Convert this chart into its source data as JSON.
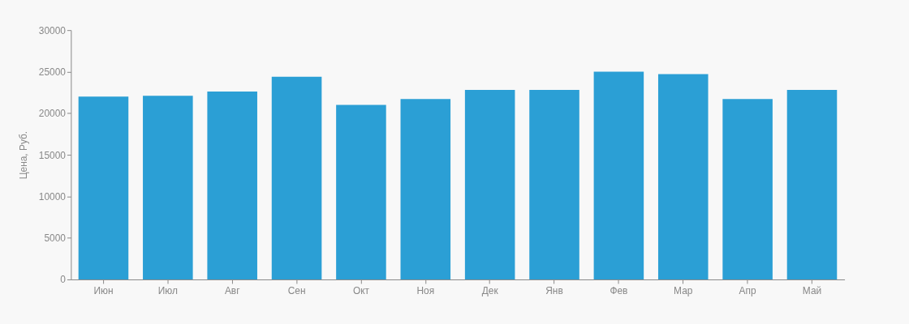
{
  "chart_data": {
    "type": "bar",
    "ylabel": "Цена, Руб.",
    "categories": [
      "Июн",
      "Июл",
      "Авг",
      "Сен",
      "Окт",
      "Ноя",
      "Дек",
      "Янв",
      "Фев",
      "Мар",
      "Апр",
      "Май"
    ],
    "values": [
      22000,
      22100,
      22600,
      24400,
      21000,
      21700,
      22800,
      22800,
      25000,
      24700,
      21700,
      22800
    ],
    "color": "#2b9fd5",
    "ylim": [
      0,
      30000
    ],
    "yticks": [
      0,
      5000,
      10000,
      15000,
      20000,
      25000,
      30000
    ],
    "grid": false
  }
}
